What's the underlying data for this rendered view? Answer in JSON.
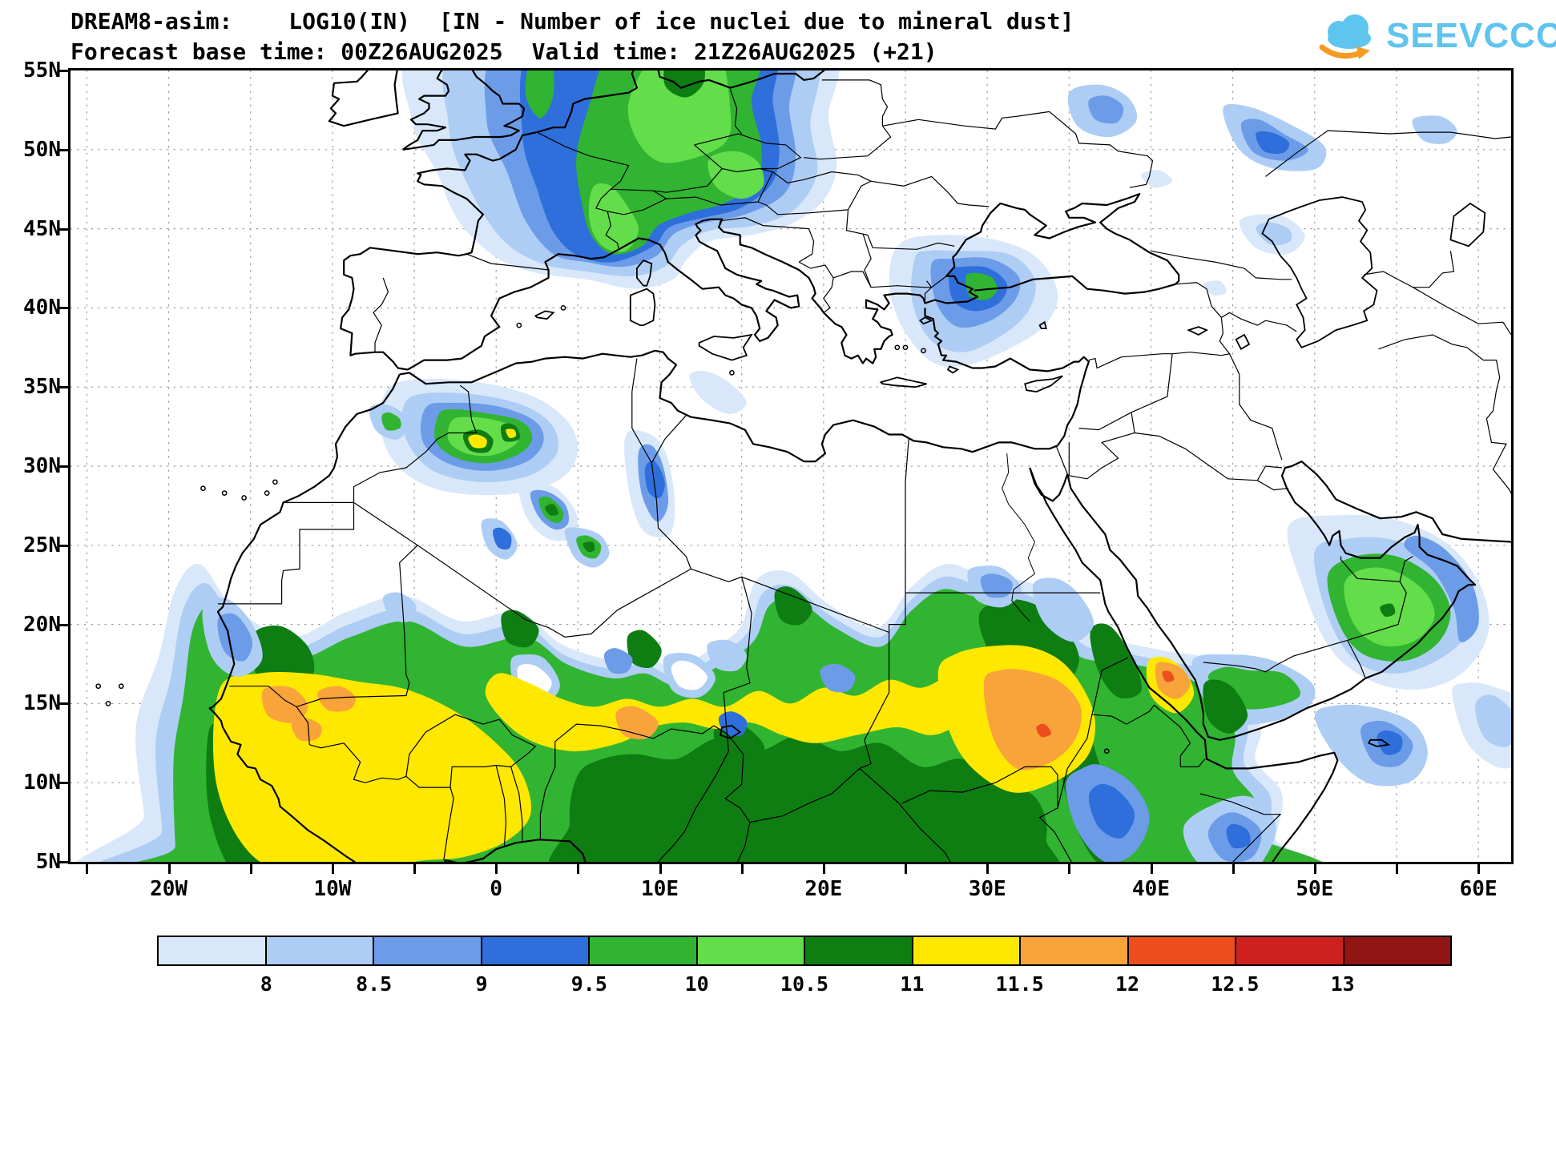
{
  "header": {
    "model": "DREAM8-asim:",
    "variable": "LOG10(IN)",
    "description": "[IN - Number of ice nuclei due to mineral dust]",
    "base_label": "Forecast base time:",
    "base_time": "00Z26AUG2025",
    "valid_label": "Valid time:",
    "valid_time": "21Z26AUG2025",
    "lead": "(+21)"
  },
  "logo": {
    "text": "SEEVCCC",
    "cloud_color": "#5fc4ee",
    "arrow_color": "#f59b20"
  },
  "axes": {
    "lat_ticks": [
      {
        "v": 55,
        "label": "55N"
      },
      {
        "v": 50,
        "label": "50N"
      },
      {
        "v": 45,
        "label": "45N"
      },
      {
        "v": 40,
        "label": "40N"
      },
      {
        "v": 35,
        "label": "35N"
      },
      {
        "v": 30,
        "label": "30N"
      },
      {
        "v": 25,
        "label": "25N"
      },
      {
        "v": 20,
        "label": "20N"
      },
      {
        "v": 15,
        "label": "15N"
      },
      {
        "v": 10,
        "label": "10N"
      },
      {
        "v": 5,
        "label": "5N"
      }
    ],
    "lon_ticks": [
      {
        "v": -20,
        "label": "20W"
      },
      {
        "v": -10,
        "label": "10W"
      },
      {
        "v": 0,
        "label": "0"
      },
      {
        "v": 10,
        "label": "10E"
      },
      {
        "v": 20,
        "label": "20E"
      },
      {
        "v": 30,
        "label": "30E"
      },
      {
        "v": 40,
        "label": "40E"
      },
      {
        "v": 50,
        "label": "50E"
      },
      {
        "v": 60,
        "label": "60E"
      }
    ]
  },
  "colorbar": {
    "labels": [
      "8",
      "8.5",
      "9",
      "9.5",
      "10",
      "10.5",
      "11",
      "11.5",
      "12",
      "12.5",
      "13"
    ],
    "colors": [
      "#d8e8fa",
      "#aecdf4",
      "#6c9ce8",
      "#2e6fdb",
      "#31b431",
      "#63dd4a",
      "#0e7d12",
      "#ffe800",
      "#f9a33b",
      "#ee4d1e",
      "#cf2020",
      "#921515"
    ]
  }
}
